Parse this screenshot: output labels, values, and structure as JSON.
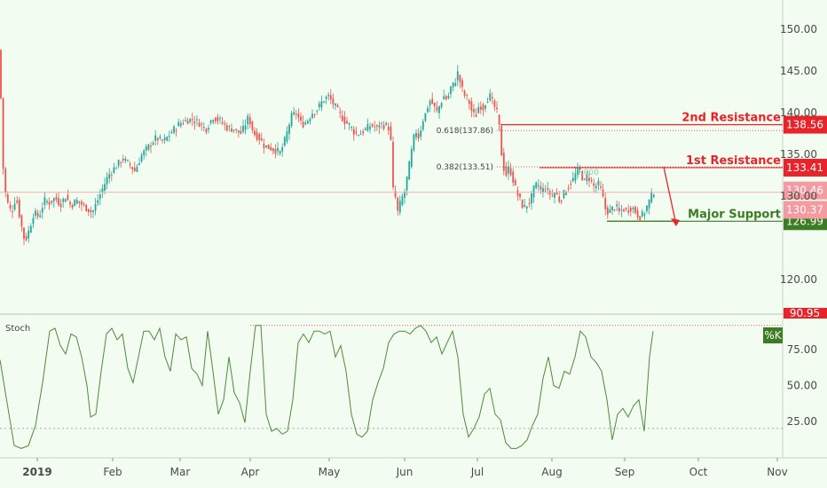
{
  "chart_data": [
    {
      "type": "candlestick",
      "y_ticks": [
        "150.00",
        "145.00",
        "140.00",
        "135.00",
        "130.00",
        "120.00"
      ],
      "ylim": [
        116,
        153
      ],
      "x_ticks": [
        "2019",
        "Feb",
        "Mar",
        "Apr",
        "May",
        "Jun",
        "Jul",
        "Aug",
        "Sep",
        "Oct",
        "Nov"
      ],
      "price_path": [
        [
          0,
          147.5
        ],
        [
          2,
          136
        ],
        [
          5,
          131
        ],
        [
          9,
          129
        ],
        [
          13,
          128
        ],
        [
          18,
          130
        ],
        [
          24,
          126.5
        ],
        [
          28,
          124.5
        ],
        [
          33,
          126
        ],
        [
          38,
          128
        ],
        [
          44,
          127.5
        ],
        [
          50,
          129.5
        ],
        [
          56,
          129.2
        ],
        [
          62,
          129.8
        ],
        [
          68,
          129
        ],
        [
          74,
          130
        ],
        [
          80,
          128.8
        ],
        [
          86,
          129.5
        ],
        [
          92,
          129
        ],
        [
          98,
          128.5
        ],
        [
          104,
          128
        ],
        [
          110,
          129.5
        ],
        [
          116,
          131
        ],
        [
          122,
          132.5
        ],
        [
          130,
          133.5
        ],
        [
          138,
          134.5
        ],
        [
          146,
          133.8
        ],
        [
          152,
          133
        ],
        [
          160,
          135
        ],
        [
          168,
          136
        ],
        [
          176,
          137
        ],
        [
          184,
          136.5
        ],
        [
          192,
          137.5
        ],
        [
          200,
          138.5
        ],
        [
          208,
          139
        ],
        [
          216,
          139.2
        ],
        [
          224,
          138.8
        ],
        [
          232,
          138
        ],
        [
          240,
          139.5
        ],
        [
          248,
          139
        ],
        [
          256,
          138.2
        ],
        [
          264,
          138
        ],
        [
          272,
          137.5
        ],
        [
          280,
          139.5
        ],
        [
          286,
          137.5
        ],
        [
          292,
          137
        ],
        [
          298,
          136
        ],
        [
          304,
          135.8
        ],
        [
          310,
          135.5
        ],
        [
          316,
          135.2
        ],
        [
          322,
          137
        ],
        [
          328,
          139.5
        ],
        [
          334,
          140
        ],
        [
          340,
          138.5
        ],
        [
          346,
          139
        ],
        [
          352,
          140
        ],
        [
          358,
          140.5
        ],
        [
          364,
          141.5
        ],
        [
          370,
          142
        ],
        [
          376,
          141
        ],
        [
          382,
          140
        ],
        [
          388,
          139
        ],
        [
          394,
          138.5
        ],
        [
          400,
          137.5
        ],
        [
          406,
          137.5
        ],
        [
          412,
          138
        ],
        [
          418,
          138.5
        ],
        [
          424,
          138.2
        ],
        [
          430,
          138.6
        ],
        [
          436,
          138.4
        ],
        [
          440,
          138
        ],
        [
          442,
          130.5
        ],
        [
          444,
          131
        ],
        [
          448,
          128
        ],
        [
          452,
          129.5
        ],
        [
          456,
          130.5
        ],
        [
          460,
          133
        ],
        [
          464,
          135.5
        ],
        [
          468,
          138
        ],
        [
          472,
          137
        ],
        [
          476,
          139
        ],
        [
          480,
          140
        ],
        [
          484,
          141.5
        ],
        [
          488,
          141
        ],
        [
          492,
          140
        ],
        [
          496,
          141
        ],
        [
          500,
          142
        ],
        [
          504,
          141.5
        ],
        [
          508,
          143
        ],
        [
          512,
          143.5
        ],
        [
          516,
          144.8
        ],
        [
          520,
          143
        ],
        [
          524,
          142
        ],
        [
          528,
          141.5
        ],
        [
          532,
          140
        ],
        [
          536,
          139.5
        ],
        [
          540,
          141
        ],
        [
          544,
          140.5
        ],
        [
          548,
          141.5
        ],
        [
          552,
          142
        ],
        [
          556,
          141
        ],
        [
          560,
          140
        ],
        [
          563,
          138
        ],
        [
          566,
          134
        ],
        [
          570,
          132.5
        ],
        [
          574,
          133.5
        ],
        [
          578,
          132
        ],
        [
          582,
          130.5
        ],
        [
          586,
          129.5
        ],
        [
          590,
          128.5
        ],
        [
          594,
          129
        ],
        [
          598,
          129.5
        ],
        [
          602,
          131
        ],
        [
          606,
          131.5
        ],
        [
          610,
          130.5
        ],
        [
          614,
          131
        ],
        [
          618,
          130.5
        ],
        [
          622,
          130
        ],
        [
          626,
          130.5
        ],
        [
          630,
          129.5
        ],
        [
          634,
          130
        ],
        [
          638,
          130.8
        ],
        [
          642,
          131.5
        ],
        [
          646,
          132
        ],
        [
          650,
          133
        ],
        [
          654,
          133.2
        ],
        [
          658,
          131.5
        ],
        [
          662,
          132.5
        ],
        [
          666,
          131.8
        ],
        [
          670,
          131
        ],
        [
          674,
          131.5
        ],
        [
          678,
          130.5
        ],
        [
          682,
          128.5
        ],
        [
          686,
          128
        ],
        [
          690,
          128.5
        ],
        [
          694,
          128.8
        ],
        [
          698,
          128
        ],
        [
          702,
          128.5
        ],
        [
          706,
          128.2
        ],
        [
          710,
          128.6
        ],
        [
          714,
          128.5
        ],
        [
          718,
          127.8
        ],
        [
          722,
          127.5
        ],
        [
          726,
          128
        ],
        [
          730,
          129
        ],
        [
          734,
          130
        ],
        [
          738,
          130.8
        ]
      ],
      "fib_levels": [
        {
          "text": "0.618(137.86)",
          "value": 137.86
        },
        {
          "text": "0.382(133.51)",
          "value": 133.51
        }
      ],
      "fib_top_text": "1.000",
      "levels": [
        {
          "label": "2nd Resistance",
          "value": "138.56",
          "y": 138.56,
          "color": "#e8232a"
        },
        {
          "label": "1st Resistance",
          "value": "133.41",
          "y": 133.41,
          "color": "#e8232a"
        },
        {
          "label": "Major Support",
          "value": "126.99",
          "y": 126.99,
          "color": "#3a7d22"
        }
      ],
      "price_badges": [
        {
          "value": "130.46",
          "y": 130.46,
          "color": "#f49aa0"
        },
        {
          "value": "130.37",
          "y": 130.37,
          "color": "#f49aa0"
        }
      ],
      "colors": {
        "up": "#26a69a",
        "down": "#ef5350",
        "resistance": "#e8232a",
        "support": "#3a7d22"
      }
    },
    {
      "type": "line",
      "name": "Stoch",
      "y_ticks": [
        "75.00",
        "50.00",
        "25.00"
      ],
      "top_badge_text": "90.95",
      "ylim": [
        0,
        100
      ],
      "reference_level": 20,
      "top_level": 92,
      "series_name": "%K",
      "series_color": "#4e8a3a",
      "values_x": [
        0,
        8,
        16,
        24,
        32,
        40,
        48,
        56,
        62,
        68,
        74,
        80,
        86,
        92,
        98,
        102,
        108,
        114,
        120,
        126,
        132,
        138,
        144,
        150,
        156,
        162,
        168,
        174,
        180,
        186,
        192,
        198,
        204,
        210,
        216,
        222,
        228,
        234,
        240,
        246,
        252,
        258,
        264,
        270,
        276,
        282,
        288,
        294,
        300,
        306,
        312,
        318,
        324,
        330,
        336,
        342,
        348,
        354,
        360,
        366,
        372,
        378,
        384,
        390,
        396,
        402,
        408,
        414,
        420,
        426,
        432,
        438,
        444,
        450,
        456,
        462,
        468,
        474,
        480,
        486,
        492,
        498,
        504,
        510,
        516,
        522,
        528,
        534,
        540,
        546,
        552,
        558,
        564,
        570,
        576,
        582,
        588,
        594,
        600,
        606,
        612,
        618,
        624,
        630,
        636,
        642,
        648,
        654,
        660,
        666,
        672,
        678,
        684,
        690,
        696,
        702,
        708,
        714,
        720,
        726,
        732,
        736
      ],
      "values_y": [
        68,
        38,
        8,
        6,
        8,
        22,
        52,
        88,
        90,
        78,
        72,
        86,
        84,
        70,
        50,
        28,
        30,
        60,
        86,
        90,
        82,
        86,
        62,
        52,
        70,
        88,
        88,
        82,
        90,
        70,
        60,
        86,
        82,
        84,
        62,
        58,
        50,
        88,
        60,
        30,
        40,
        70,
        45,
        38,
        24,
        60,
        92,
        92,
        30,
        18,
        20,
        16,
        18,
        40,
        80,
        86,
        80,
        88,
        88,
        86,
        88,
        70,
        78,
        60,
        30,
        16,
        14,
        18,
        40,
        52,
        62,
        80,
        86,
        88,
        88,
        86,
        90,
        92,
        88,
        80,
        84,
        72,
        80,
        88,
        70,
        30,
        14,
        20,
        28,
        44,
        48,
        30,
        26,
        10,
        6,
        6,
        8,
        12,
        22,
        30,
        55,
        70,
        50,
        48,
        60,
        58,
        70,
        88,
        84,
        70,
        66,
        60,
        40,
        12,
        30,
        34,
        28,
        36,
        40,
        18,
        70,
        88
      ]
    }
  ]
}
